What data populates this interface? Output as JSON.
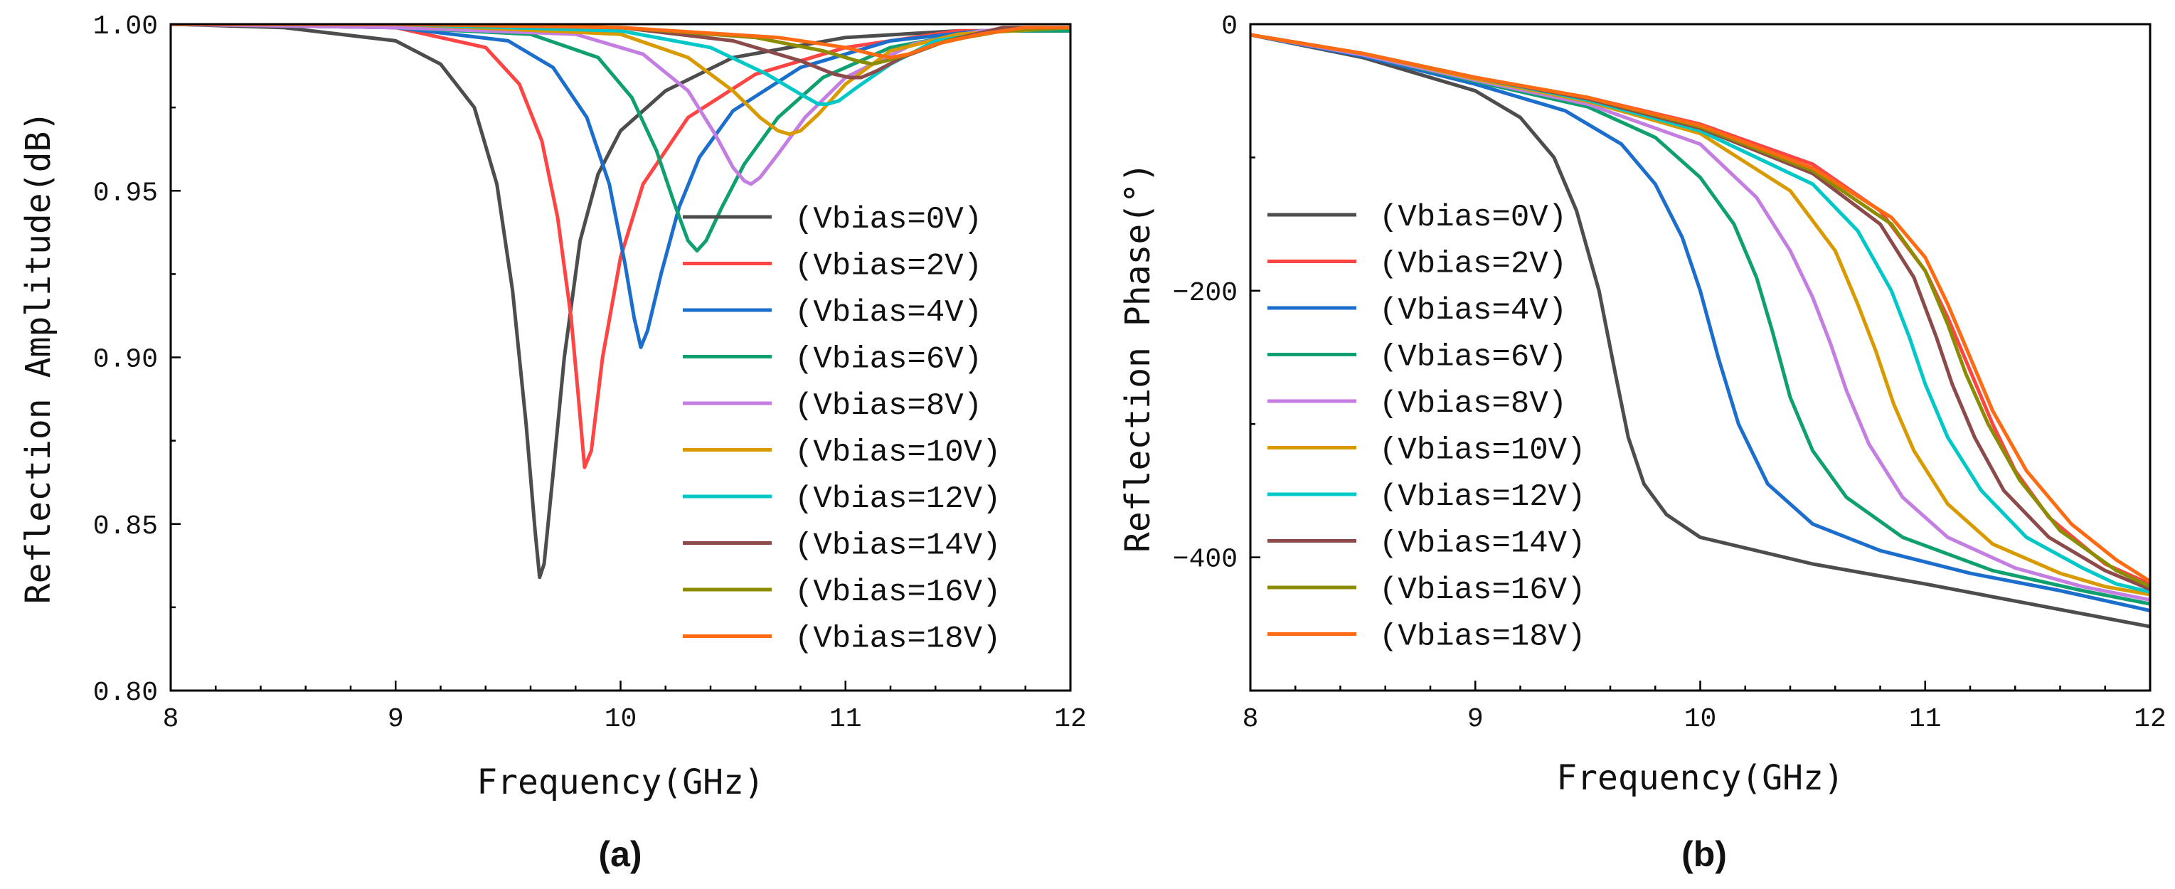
{
  "chart_data": [
    {
      "type": "line",
      "panel": "(a)",
      "xlabel": "Frequency(GHz)",
      "ylabel": "Reflection Amplitude(dB)",
      "xlim": [
        8,
        12
      ],
      "ylim": [
        0.8,
        1.0
      ],
      "xticks": [
        8,
        9,
        10,
        11,
        12
      ],
      "xtick_labels": [
        "8",
        "9",
        "10",
        "11",
        "12"
      ],
      "yticks": [
        0.8,
        0.85,
        0.9,
        0.95,
        1.0
      ],
      "ytick_labels": [
        "0.80",
        "0.85",
        "0.90",
        "0.95",
        "1.00"
      ],
      "legend_position": "center-right",
      "series": [
        {
          "name": "(Vbias=0V)",
          "color": "#4d4d4d",
          "x": [
            8.0,
            8.5,
            9.0,
            9.2,
            9.35,
            9.45,
            9.52,
            9.58,
            9.62,
            9.64,
            9.66,
            9.7,
            9.75,
            9.82,
            9.9,
            10.0,
            10.2,
            10.5,
            11.0,
            11.5,
            12.0
          ],
          "y": [
            1.0,
            0.999,
            0.995,
            0.988,
            0.975,
            0.952,
            0.92,
            0.88,
            0.848,
            0.834,
            0.838,
            0.865,
            0.9,
            0.935,
            0.955,
            0.968,
            0.98,
            0.99,
            0.996,
            0.998,
            0.998
          ]
        },
        {
          "name": "(Vbias=2V)",
          "color": "#ff4444",
          "x": [
            8.0,
            9.0,
            9.4,
            9.55,
            9.65,
            9.72,
            9.78,
            9.81,
            9.84,
            9.87,
            9.92,
            10.0,
            10.1,
            10.3,
            10.6,
            11.0,
            11.5,
            12.0
          ],
          "y": [
            1.0,
            0.999,
            0.993,
            0.982,
            0.965,
            0.942,
            0.912,
            0.89,
            0.867,
            0.872,
            0.9,
            0.93,
            0.952,
            0.972,
            0.985,
            0.993,
            0.998,
            0.998
          ]
        },
        {
          "name": "(Vbias=4V)",
          "color": "#1b6ecb",
          "x": [
            8.0,
            9.0,
            9.5,
            9.7,
            9.85,
            9.95,
            10.02,
            10.06,
            10.09,
            10.12,
            10.18,
            10.26,
            10.35,
            10.5,
            10.8,
            11.2,
            11.6,
            12.0
          ],
          "y": [
            1.0,
            0.999,
            0.995,
            0.987,
            0.972,
            0.952,
            0.928,
            0.912,
            0.903,
            0.908,
            0.925,
            0.945,
            0.96,
            0.974,
            0.987,
            0.995,
            0.998,
            0.998
          ]
        },
        {
          "name": "(Vbias=6V)",
          "color": "#10a070",
          "x": [
            8.0,
            9.0,
            9.6,
            9.9,
            10.05,
            10.16,
            10.24,
            10.3,
            10.34,
            10.38,
            10.45,
            10.55,
            10.7,
            10.9,
            11.2,
            11.6,
            12.0
          ],
          "y": [
            1.0,
            0.999,
            0.997,
            0.99,
            0.978,
            0.962,
            0.946,
            0.935,
            0.932,
            0.935,
            0.945,
            0.958,
            0.972,
            0.984,
            0.993,
            0.998,
            0.998
          ]
        },
        {
          "name": "(Vbias=8V)",
          "color": "#c47de0",
          "x": [
            8.0,
            9.0,
            9.8,
            10.1,
            10.3,
            10.42,
            10.5,
            10.55,
            10.58,
            10.62,
            10.7,
            10.82,
            11.0,
            11.3,
            11.6,
            12.0
          ],
          "y": [
            1.0,
            0.999,
            0.997,
            0.991,
            0.98,
            0.967,
            0.957,
            0.953,
            0.952,
            0.954,
            0.961,
            0.972,
            0.984,
            0.994,
            0.998,
            0.999
          ]
        },
        {
          "name": "(Vbias=10V)",
          "color": "#d99a00",
          "x": [
            8.0,
            9.0,
            10.0,
            10.3,
            10.5,
            10.62,
            10.7,
            10.75,
            10.8,
            10.88,
            11.0,
            11.2,
            11.5,
            12.0
          ],
          "y": [
            1.0,
            1.0,
            0.997,
            0.99,
            0.98,
            0.972,
            0.968,
            0.967,
            0.968,
            0.973,
            0.982,
            0.992,
            0.997,
            0.999
          ]
        },
        {
          "name": "(Vbias=12V)",
          "color": "#00c8c8",
          "x": [
            8.0,
            9.0,
            10.0,
            10.4,
            10.65,
            10.8,
            10.88,
            10.92,
            10.97,
            11.05,
            11.2,
            11.4,
            11.7,
            12.0
          ],
          "y": [
            1.0,
            1.0,
            0.998,
            0.993,
            0.985,
            0.979,
            0.976,
            0.976,
            0.977,
            0.981,
            0.988,
            0.995,
            0.998,
            0.999
          ]
        },
        {
          "name": "(Vbias=14V)",
          "color": "#8c4a4a",
          "x": [
            8.0,
            9.0,
            10.0,
            10.5,
            10.8,
            10.95,
            11.02,
            11.07,
            11.14,
            11.25,
            11.45,
            11.7,
            12.0
          ],
          "y": [
            1.0,
            1.0,
            0.999,
            0.995,
            0.989,
            0.985,
            0.984,
            0.984,
            0.986,
            0.99,
            0.995,
            0.999,
            0.999
          ]
        },
        {
          "name": "(Vbias=16V)",
          "color": "#8c8c00",
          "x": [
            8.0,
            9.0,
            10.0,
            10.6,
            10.9,
            11.05,
            11.12,
            11.18,
            11.28,
            11.45,
            11.7,
            12.0
          ],
          "y": [
            1.0,
            1.0,
            0.999,
            0.996,
            0.992,
            0.989,
            0.988,
            0.989,
            0.991,
            0.995,
            0.998,
            0.999
          ]
        },
        {
          "name": "(Vbias=18V)",
          "color": "#ff6a13",
          "x": [
            8.0,
            9.0,
            10.0,
            10.7,
            11.0,
            11.12,
            11.2,
            11.28,
            11.4,
            11.6,
            11.8,
            12.0
          ],
          "y": [
            1.0,
            1.0,
            0.999,
            0.996,
            0.993,
            0.991,
            0.99,
            0.991,
            0.994,
            0.997,
            0.999,
            0.999
          ]
        }
      ]
    },
    {
      "type": "line",
      "panel": "(b)",
      "xlabel": "Frequency(GHz)",
      "ylabel": "Reflection Phase(°)",
      "xlim": [
        8,
        12
      ],
      "ylim": [
        -500,
        0
      ],
      "xticks": [
        8,
        9,
        10,
        11,
        12
      ],
      "xtick_labels": [
        "8",
        "9",
        "10",
        "11",
        "12"
      ],
      "yticks": [
        -400,
        -200,
        0
      ],
      "ytick_labels": [
        "−400",
        "−200",
        "0"
      ],
      "legend_position": "left",
      "series": [
        {
          "name": "(Vbias=0V)",
          "color": "#4d4d4d",
          "x": [
            8.0,
            8.5,
            9.0,
            9.2,
            9.35,
            9.45,
            9.55,
            9.62,
            9.68,
            9.75,
            9.85,
            10.0,
            10.5,
            11.0,
            11.5,
            12.0
          ],
          "y": [
            -8,
            -25,
            -50,
            -70,
            -100,
            -140,
            -200,
            -260,
            -310,
            -345,
            -368,
            -385,
            -405,
            -420,
            -436,
            -452
          ]
        },
        {
          "name": "(Vbias=2V)",
          "color": "#ff4444",
          "x": [
            8.0,
            8.5,
            9.0,
            9.5,
            10.0,
            10.5,
            10.8,
            11.0,
            11.1,
            11.2,
            11.3,
            11.4,
            11.55,
            11.8,
            12.0
          ],
          "y": [
            -8,
            -22,
            -40,
            -55,
            -75,
            -105,
            -140,
            -185,
            -220,
            -260,
            -300,
            -335,
            -370,
            -405,
            -420
          ]
        },
        {
          "name": "(Vbias=4V)",
          "color": "#1b6ecb",
          "x": [
            8.0,
            8.5,
            9.0,
            9.4,
            9.65,
            9.8,
            9.92,
            10.0,
            10.08,
            10.17,
            10.3,
            10.5,
            10.8,
            11.2,
            11.6,
            12.0
          ],
          "y": [
            -8,
            -24,
            -45,
            -65,
            -90,
            -120,
            -160,
            -200,
            -250,
            -300,
            -345,
            -375,
            -395,
            -412,
            -425,
            -440
          ]
        },
        {
          "name": "(Vbias=6V)",
          "color": "#10a070",
          "x": [
            8.0,
            8.5,
            9.0,
            9.5,
            9.8,
            10.0,
            10.15,
            10.25,
            10.32,
            10.4,
            10.5,
            10.65,
            10.9,
            11.3,
            11.7,
            12.0
          ],
          "y": [
            -8,
            -23,
            -43,
            -62,
            -85,
            -115,
            -150,
            -190,
            -230,
            -280,
            -320,
            -355,
            -385,
            -410,
            -425,
            -435
          ]
        },
        {
          "name": "(Vbias=8V)",
          "color": "#c47de0",
          "x": [
            8.0,
            8.5,
            9.0,
            9.5,
            10.0,
            10.25,
            10.4,
            10.5,
            10.58,
            10.65,
            10.75,
            10.9,
            11.1,
            11.4,
            11.7,
            12.0
          ],
          "y": [
            -8,
            -23,
            -42,
            -60,
            -90,
            -130,
            -170,
            -205,
            -240,
            -275,
            -315,
            -355,
            -385,
            -408,
            -422,
            -432
          ]
        },
        {
          "name": "(Vbias=10V)",
          "color": "#d99a00",
          "x": [
            8.0,
            8.5,
            9.0,
            9.5,
            10.0,
            10.4,
            10.6,
            10.7,
            10.78,
            10.86,
            10.95,
            11.1,
            11.3,
            11.6,
            11.8,
            12.0
          ],
          "y": [
            -8,
            -22,
            -41,
            -58,
            -82,
            -125,
            -170,
            -210,
            -245,
            -285,
            -320,
            -360,
            -390,
            -412,
            -422,
            -428
          ]
        },
        {
          "name": "(Vbias=12V)",
          "color": "#00c8c8",
          "x": [
            8.0,
            8.5,
            9.0,
            9.5,
            10.0,
            10.5,
            10.7,
            10.85,
            10.93,
            11.0,
            11.1,
            11.25,
            11.45,
            11.7,
            11.85,
            12.0
          ],
          "y": [
            -8,
            -22,
            -40,
            -57,
            -80,
            -120,
            -155,
            -200,
            -235,
            -270,
            -310,
            -350,
            -385,
            -408,
            -420,
            -426
          ]
        },
        {
          "name": "(Vbias=14V)",
          "color": "#8c4a4a",
          "x": [
            8.0,
            8.5,
            9.0,
            9.5,
            10.0,
            10.5,
            10.8,
            10.95,
            11.05,
            11.12,
            11.22,
            11.35,
            11.55,
            11.8,
            12.0
          ],
          "y": [
            -8,
            -22,
            -40,
            -56,
            -78,
            -112,
            -150,
            -190,
            -235,
            -270,
            -310,
            -350,
            -385,
            -410,
            -424
          ]
        },
        {
          "name": "(Vbias=16V)",
          "color": "#8c8c00",
          "x": [
            8.0,
            8.5,
            9.0,
            9.5,
            10.0,
            10.5,
            10.85,
            11.0,
            11.1,
            11.18,
            11.28,
            11.42,
            11.6,
            11.85,
            12.0
          ],
          "y": [
            -8,
            -22,
            -40,
            -55,
            -77,
            -110,
            -150,
            -185,
            -225,
            -262,
            -300,
            -342,
            -380,
            -410,
            -422
          ]
        },
        {
          "name": "(Vbias=18V)",
          "color": "#ff6a13",
          "x": [
            8.0,
            8.5,
            9.0,
            9.5,
            10.0,
            10.5,
            10.85,
            11.0,
            11.1,
            11.2,
            11.3,
            11.45,
            11.65,
            11.85,
            12.0
          ],
          "y": [
            -8,
            -22,
            -40,
            -55,
            -76,
            -108,
            -145,
            -175,
            -210,
            -250,
            -290,
            -335,
            -375,
            -402,
            -418
          ]
        }
      ]
    }
  ]
}
